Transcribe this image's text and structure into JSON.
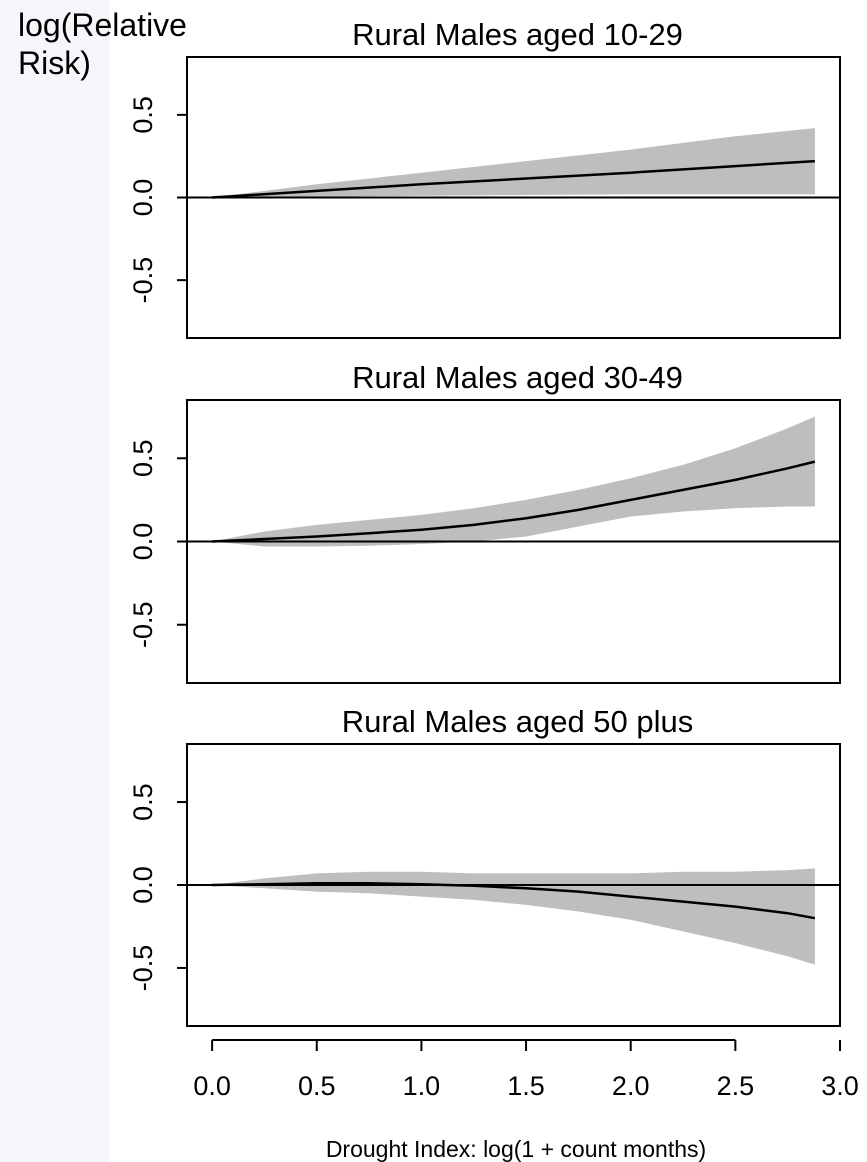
{
  "figure": {
    "ylabel_line1": "log(Relative",
    "ylabel_line2": "Risk)",
    "xlabel": "Drought Index: log(1 + count months)",
    "band_color": "#bebebe",
    "line_color": "#000000"
  },
  "chart_data": [
    {
      "type": "line",
      "title": "Rural Males aged 10-29",
      "xlim": [
        -0.12,
        3.0
      ],
      "ylim": [
        -0.85,
        0.85
      ],
      "yticks": [
        "-0.5",
        "0.0",
        "0.5"
      ],
      "ytick_values": [
        -0.5,
        0.0,
        0.5
      ],
      "reference_line": 0,
      "series": [
        {
          "x": [
            0.0,
            0.5,
            1.0,
            1.5,
            2.0,
            2.5,
            2.88
          ],
          "y": [
            0.0,
            0.04,
            0.08,
            0.115,
            0.15,
            0.19,
            0.22
          ],
          "lower": [
            0.0,
            0.005,
            0.01,
            0.015,
            0.02,
            0.02,
            0.02
          ],
          "upper": [
            0.0,
            0.08,
            0.15,
            0.22,
            0.29,
            0.37,
            0.42
          ]
        }
      ]
    },
    {
      "type": "line",
      "title": "Rural Males aged 30-49",
      "xlim": [
        -0.12,
        3.0
      ],
      "ylim": [
        -0.85,
        0.85
      ],
      "yticks": [
        "-0.5",
        "0.0",
        "0.5"
      ],
      "ytick_values": [
        -0.5,
        0.0,
        0.5
      ],
      "reference_line": 0,
      "series": [
        {
          "x": [
            0.0,
            0.25,
            0.5,
            0.75,
            1.0,
            1.25,
            1.5,
            1.75,
            2.0,
            2.25,
            2.5,
            2.75,
            2.88
          ],
          "y": [
            0.0,
            0.015,
            0.03,
            0.05,
            0.07,
            0.1,
            0.14,
            0.19,
            0.25,
            0.31,
            0.37,
            0.44,
            0.48
          ],
          "lower": [
            0.0,
            -0.03,
            -0.03,
            -0.025,
            -0.015,
            0.0,
            0.03,
            0.09,
            0.15,
            0.18,
            0.2,
            0.21,
            0.21
          ],
          "upper": [
            0.0,
            0.06,
            0.1,
            0.13,
            0.16,
            0.2,
            0.25,
            0.31,
            0.38,
            0.46,
            0.56,
            0.68,
            0.75
          ]
        }
      ]
    },
    {
      "type": "line",
      "title": "Rural Males aged 50 plus",
      "xlim": [
        -0.12,
        3.0
      ],
      "ylim": [
        -0.85,
        0.85
      ],
      "yticks": [
        "-0.5",
        "0.0",
        "0.5"
      ],
      "ytick_values": [
        -0.5,
        0.0,
        0.5
      ],
      "reference_line": 0,
      "series": [
        {
          "x": [
            0.0,
            0.25,
            0.5,
            0.75,
            1.0,
            1.25,
            1.5,
            1.75,
            2.0,
            2.25,
            2.5,
            2.75,
            2.88
          ],
          "y": [
            0.0,
            0.005,
            0.01,
            0.01,
            0.005,
            -0.005,
            -0.02,
            -0.04,
            -0.07,
            -0.1,
            -0.13,
            -0.17,
            -0.2
          ],
          "lower": [
            0.0,
            -0.02,
            -0.04,
            -0.05,
            -0.07,
            -0.09,
            -0.12,
            -0.16,
            -0.21,
            -0.28,
            -0.35,
            -0.43,
            -0.48
          ],
          "upper": [
            0.0,
            0.04,
            0.07,
            0.08,
            0.08,
            0.07,
            0.07,
            0.07,
            0.07,
            0.08,
            0.08,
            0.09,
            0.1
          ]
        }
      ]
    }
  ],
  "shared_x_axis": {
    "ticks": [
      "0.0",
      "0.5",
      "1.0",
      "1.5",
      "2.0",
      "2.5",
      "3.0"
    ],
    "tick_values": [
      0.0,
      0.5,
      1.0,
      1.5,
      2.0,
      2.5,
      3.0
    ]
  }
}
